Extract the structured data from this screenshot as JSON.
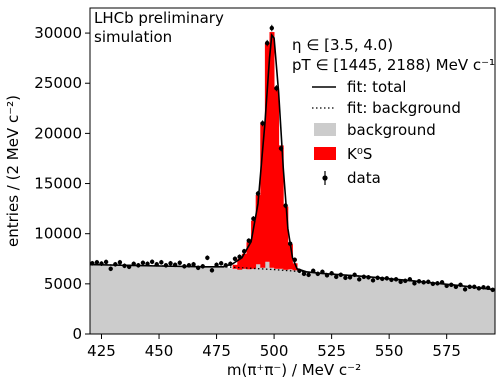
{
  "chart_data": {
    "type": "histogram",
    "xlabel": "m(π⁺π⁻) / MeV c⁻²",
    "ylabel": "entries / (2 MeV c⁻²)",
    "xlim": [
      420,
      596
    ],
    "ylim": [
      0,
      32500
    ],
    "x_ticks": [
      425,
      450,
      475,
      500,
      525,
      550,
      575
    ],
    "y_ticks": [
      0,
      5000,
      10000,
      15000,
      20000,
      25000,
      30000
    ],
    "annotations": {
      "lhcb": "LHCb preliminary",
      "simulation": "simulation",
      "eta_range": "η ∈ [3.5, 4.0)",
      "pt_range": "pT ∈ [1445, 2188) MeV c⁻¹"
    },
    "legend": [
      {
        "label": "fit: total",
        "style": "solid-line"
      },
      {
        "label": "fit: background",
        "style": "dotted-line"
      },
      {
        "label": "background",
        "style": "gray-fill"
      },
      {
        "label": "K⁰S",
        "style": "red-fill"
      },
      {
        "label": "data",
        "style": "marker-errorbar"
      }
    ],
    "colors": {
      "background": "#cccccc",
      "signal": "#ff0000",
      "data": "#000000"
    },
    "bin_width": 2,
    "bin_centers": [
      421,
      423,
      425,
      427,
      429,
      431,
      433,
      435,
      437,
      439,
      441,
      443,
      445,
      447,
      449,
      451,
      453,
      455,
      457,
      459,
      461,
      463,
      465,
      467,
      469,
      471,
      473,
      475,
      477,
      479,
      481,
      483,
      485,
      487,
      489,
      491,
      493,
      495,
      497,
      499,
      501,
      503,
      505,
      507,
      509,
      511,
      513,
      515,
      517,
      519,
      521,
      523,
      525,
      527,
      529,
      531,
      533,
      535,
      537,
      539,
      541,
      543,
      545,
      547,
      549,
      551,
      553,
      555,
      557,
      559,
      561,
      563,
      565,
      567,
      569,
      571,
      573,
      575,
      577,
      579,
      581,
      583,
      585,
      587,
      589,
      591,
      593,
      595
    ],
    "data": [
      7050,
      7150,
      7020,
      7180,
      6500,
      6950,
      7150,
      6800,
      6700,
      7000,
      6850,
      7100,
      7000,
      7200,
      6950,
      7150,
      6850,
      7050,
      6900,
      7100,
      6750,
      6850,
      6950,
      6600,
      6750,
      7600,
      6350,
      6900,
      7050,
      6850,
      7000,
      7500,
      7700,
      8250,
      9300,
      11500,
      14000,
      21000,
      29000,
      30500,
      24500,
      18500,
      12800,
      9000,
      7400,
      6300,
      6000,
      5900,
      6300,
      6000,
      6200,
      5850,
      6050,
      5700,
      5900,
      5600,
      5650,
      5900,
      5450,
      5700,
      5650,
      5350,
      5600,
      5500,
      5550,
      5400,
      5450,
      5200,
      5300,
      5450,
      5050,
      5250,
      5150,
      5200,
      5000,
      5050,
      5150,
      4800,
      4900,
      4700,
      4900,
      4450,
      4700,
      4700,
      4550,
      4650,
      4600,
      4400
    ],
    "background": [
      6900,
      6890,
      6880,
      6870,
      6860,
      6850,
      6840,
      6830,
      6820,
      6810,
      6800,
      6790,
      6780,
      6770,
      6760,
      6750,
      6740,
      6730,
      6720,
      6710,
      6700,
      6690,
      6680,
      6670,
      6660,
      6650,
      6640,
      6630,
      6620,
      6610,
      6550,
      6500,
      6400,
      6500,
      6450,
      6500,
      6950,
      6600,
      7200,
      6600,
      6500,
      6500,
      6400,
      6450,
      6350,
      6050,
      6000,
      5900,
      6300,
      6000,
      6200,
      5850,
      6050,
      5700,
      5900,
      5600,
      5650,
      5900,
      5450,
      5700,
      5650,
      5350,
      5600,
      5500,
      5550,
      5400,
      5450,
      5200,
      5300,
      5450,
      5050,
      5250,
      5150,
      5200,
      5000,
      5050,
      5150,
      4800,
      4900,
      4700,
      4900,
      4450,
      4700,
      4700,
      4550,
      4650,
      4600,
      4400
    ],
    "signal": [
      0,
      0,
      0,
      0,
      0,
      0,
      0,
      0,
      0,
      0,
      0,
      0,
      0,
      0,
      0,
      0,
      0,
      0,
      0,
      0,
      0,
      0,
      0,
      0,
      0,
      0,
      0,
      0,
      0,
      0,
      0,
      400,
      1100,
      1500,
      2700,
      4800,
      6900,
      14500,
      21800,
      23500,
      18000,
      12300,
      6300,
      2500,
      700,
      0,
      0,
      0,
      0,
      0,
      0,
      0,
      0,
      0,
      0,
      0,
      0,
      0,
      0,
      0,
      0,
      0,
      0,
      0,
      0,
      0,
      0,
      0,
      0,
      0,
      0,
      0,
      0,
      0,
      0,
      0,
      0,
      0,
      0,
      0,
      0,
      0,
      0,
      0,
      0,
      0,
      0,
      0
    ],
    "fit_total": [
      [
        420,
        6920
      ],
      [
        450,
        6780
      ],
      [
        470,
        6700
      ],
      [
        478,
        6700
      ],
      [
        482,
        7000
      ],
      [
        486,
        7600
      ],
      [
        490,
        9200
      ],
      [
        493,
        13000
      ],
      [
        496,
        21000
      ],
      [
        498,
        27500
      ],
      [
        499,
        29800
      ],
      [
        500,
        29500
      ],
      [
        502,
        24000
      ],
      [
        504,
        16500
      ],
      [
        506,
        10500
      ],
      [
        508,
        7600
      ],
      [
        510,
        6500
      ],
      [
        514,
        6200
      ],
      [
        520,
        6050
      ],
      [
        540,
        5720
      ],
      [
        560,
        5300
      ],
      [
        580,
        4850
      ],
      [
        596,
        4420
      ]
    ],
    "fit_background": [
      [
        420,
        6920
      ],
      [
        480,
        6680
      ],
      [
        500,
        6420
      ],
      [
        520,
        6080
      ],
      [
        540,
        5720
      ],
      [
        560,
        5300
      ],
      [
        580,
        4850
      ],
      [
        596,
        4420
      ]
    ]
  }
}
